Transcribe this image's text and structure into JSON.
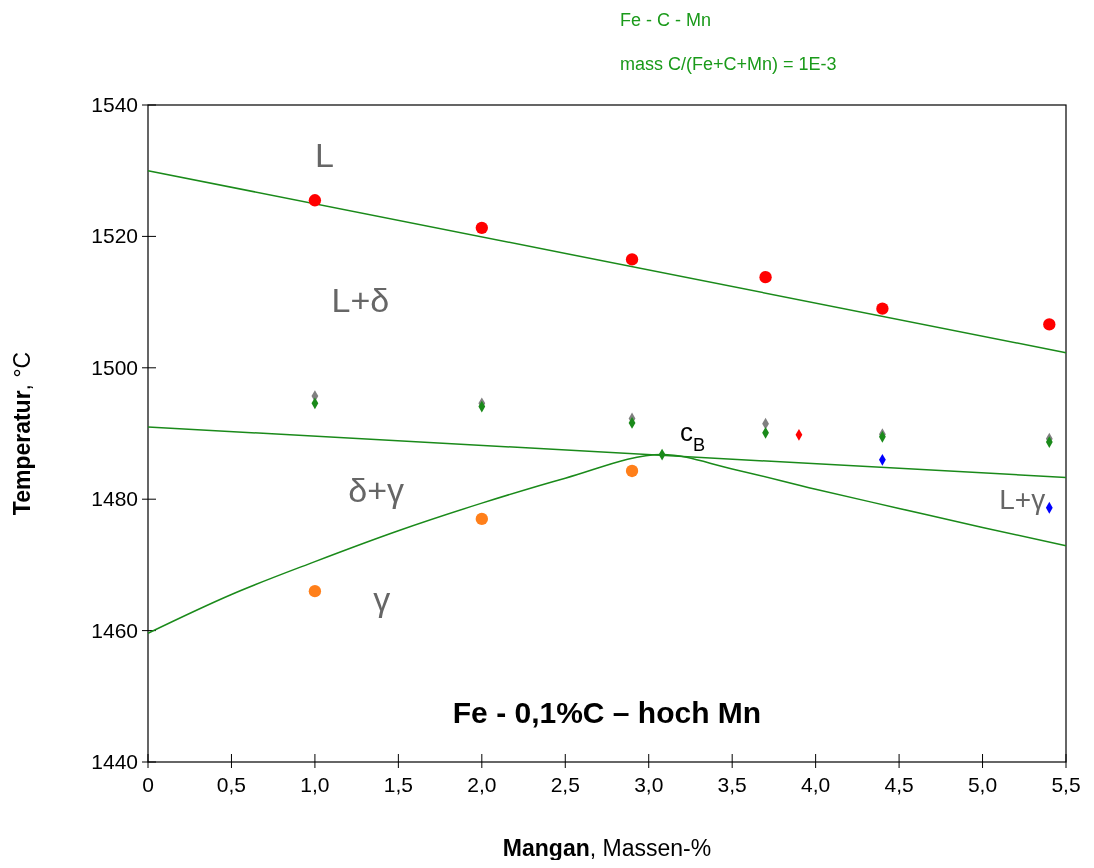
{
  "chart_data": {
    "type": "line",
    "title": "Fe - 0,1%C – hoch Mn",
    "xlabel": "Mangan, Massen-%",
    "ylabel": "Temperatur, °C",
    "xlim": [
      0,
      5.5
    ],
    "ylim": [
      1440,
      1540
    ],
    "xticks": [
      0,
      {
        "value": 0.5,
        "label": "0,5"
      },
      {
        "value": 1,
        "label": "1,0"
      },
      {
        "value": 1.5,
        "label": "1,5"
      },
      {
        "value": 2,
        "label": "2,0"
      },
      {
        "value": 2.5,
        "label": "2,5"
      },
      {
        "value": 3,
        "label": "3,0"
      },
      {
        "value": 3.5,
        "label": "3,5"
      },
      {
        "value": 4,
        "label": "4,0"
      },
      {
        "value": 4.5,
        "label": "4,5"
      },
      {
        "value": 5,
        "label": "5,0"
      },
      {
        "value": 5.5,
        "label": "5,5"
      }
    ],
    "yticks": [
      1440,
      1460,
      1480,
      1500,
      1520,
      1540
    ],
    "grid": false,
    "line_style": "solid",
    "series": [
      {
        "marker": "none",
        "color": "#1a8a1a",
        "x": [
          0,
          5.5
        ],
        "values": [
          1530,
          1502.3
        ]
      },
      {
        "marker": "none",
        "color": "#1a8a1a",
        "x": [
          0,
          5.5
        ],
        "values": [
          1491,
          1483.3
        ]
      },
      {
        "marker": "none",
        "color": "#1a8a1a",
        "x": [
          0,
          0.5,
          1,
          1.5,
          2,
          2.5,
          3.08,
          3.5,
          4,
          4.5,
          5,
          5.5
        ],
        "values": [
          1459.6,
          1465.5,
          1470.5,
          1475.2,
          1479.4,
          1483.2,
          1486.8,
          1484.6,
          1481.5,
          1478.6,
          1475.7,
          1472.9
        ]
      },
      {
        "type": "scatter",
        "marker": "circle",
        "color": "#ff0000",
        "x": [
          1,
          2,
          2.9,
          3.7,
          4.4,
          5.4
        ],
        "values": [
          1525.5,
          1521.3,
          1516.5,
          1513.8,
          1509,
          1506.6
        ]
      },
      {
        "type": "scatter",
        "marker": "circle",
        "color": "#ff7f1a",
        "x": [
          1,
          2,
          2.9
        ],
        "values": [
          1466,
          1477,
          1484.3
        ]
      },
      {
        "type": "scatter",
        "marker": "diamond",
        "color": "#808080",
        "x": [
          1,
          2,
          2.9,
          3.7,
          4.4,
          5.4
        ],
        "values": [
          1495.7,
          1494.6,
          1492.3,
          1491.5,
          1489.9,
          1489.2
        ]
      },
      {
        "type": "scatter",
        "marker": "diamond",
        "color": "#1a8a1a",
        "x": [
          1,
          2,
          2.9,
          3.7,
          4.4,
          5.4
        ],
        "values": [
          1494.6,
          1494.1,
          1491.6,
          1490.1,
          1489.5,
          1488.7
        ]
      },
      {
        "type": "scatter",
        "marker": "diamond",
        "color": "#0000ff",
        "x": [
          4.4,
          5.4
        ],
        "values": [
          1486,
          1478.7
        ]
      },
      {
        "type": "scatter",
        "marker": "diamond",
        "color": "#ff0000",
        "x": [
          3.9
        ],
        "values": [
          1489.8
        ]
      },
      {
        "type": "scatter",
        "marker": "diamond",
        "color": "#1a8a1a",
        "x": [
          3.08
        ],
        "values": [
          1486.8
        ]
      }
    ],
    "annotations": [
      "L",
      "L+δ",
      "δ+γ",
      "γ",
      "L+γ",
      {
        "text": "c$_{B}$",
        "x": 3.08,
        "y": 1486.8
      },
      "Fe - C - Mn",
      "mass C/(Fe+C+Mn) = 1E-3"
    ]
  }
}
